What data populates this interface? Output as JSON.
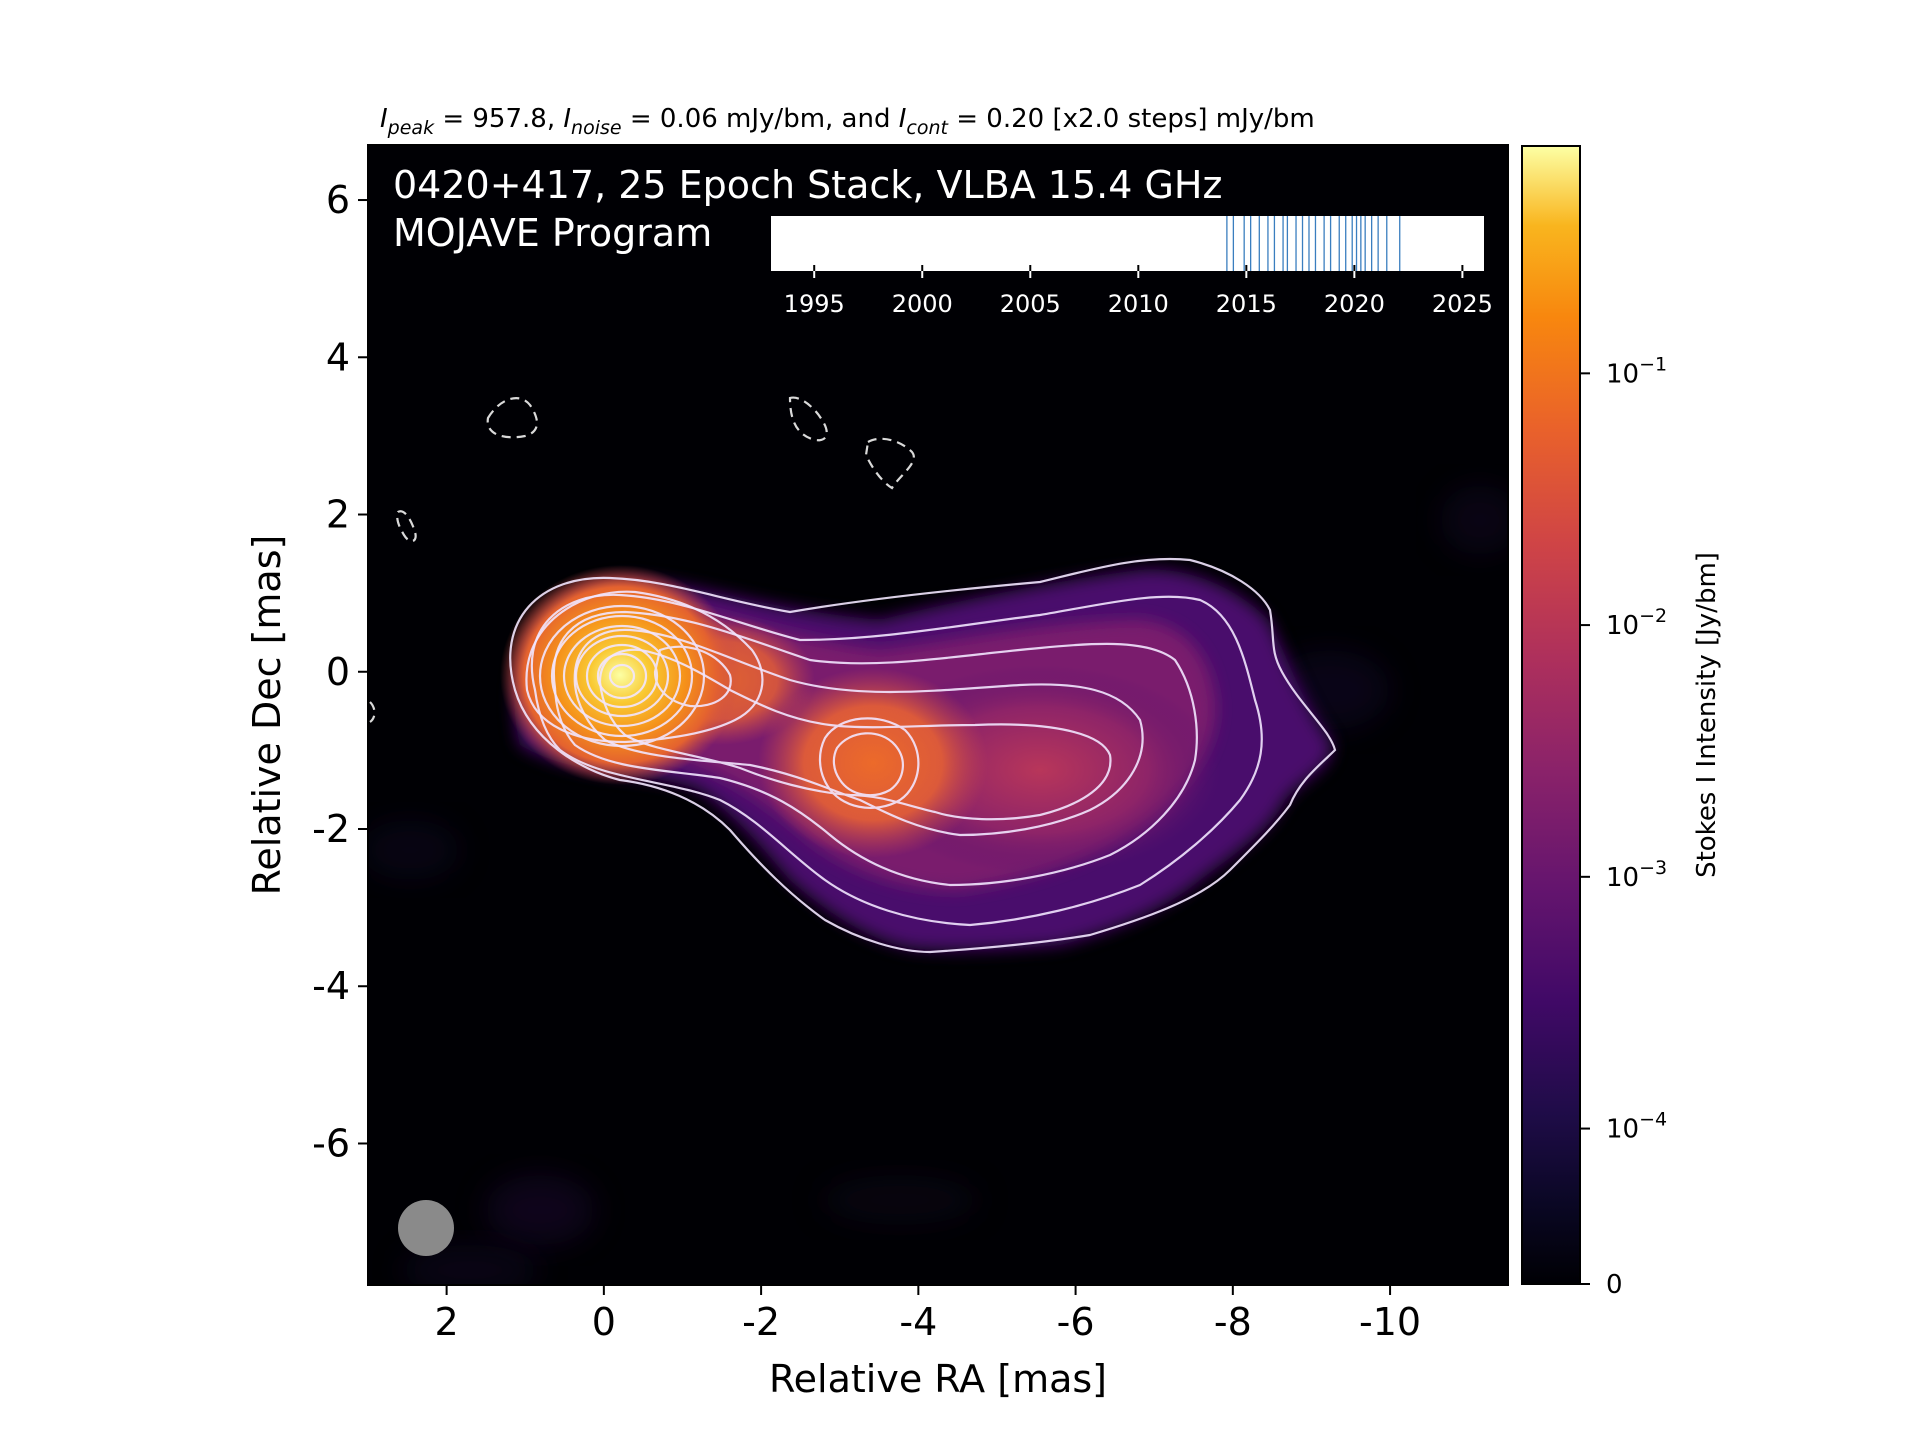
{
  "header": {
    "peak_sym": "I",
    "peak_sub": "peak",
    "peak_val": " = 957.8, ",
    "noise_sym": "I",
    "noise_sub": "noise",
    "noise_val": " = 0.06 mJy/bm, and ",
    "cont_sym": "I",
    "cont_sub": "cont",
    "cont_val": " = 0.20 [x2.0 steps] mJy/bm"
  },
  "overlay": {
    "title_line1": "0420+417, 25 Epoch Stack, VLBA 15.4 GHz",
    "title_line2": "MOJAVE Program"
  },
  "chart_data": {
    "type": "heatmap",
    "xlabel": "Relative RA [mas]",
    "ylabel": "Relative Dec [mas]",
    "xlim": [
      3.0,
      -11.5
    ],
    "ylim": [
      -7.8,
      6.7
    ],
    "x_ticks": [
      2,
      0,
      -2,
      -4,
      -6,
      -8,
      -10
    ],
    "y_ticks": [
      6,
      4,
      2,
      0,
      -2,
      -4,
      -6
    ],
    "x_tick_labels": [
      "2",
      "0",
      "-2",
      "-4",
      "-6",
      "-8",
      "-10"
    ],
    "y_tick_labels": [
      "6",
      "4",
      "2",
      "0",
      "-2",
      "-4",
      "-6"
    ],
    "colormap": "inferno",
    "colorbar": {
      "label": "Stokes I Intensity [Jy/bm]",
      "scale": "log",
      "range": [
        0,
        0.8
      ],
      "ticks": [
        {
          "value": 0.1,
          "base": "10",
          "exp": "−1"
        },
        {
          "value": 0.01,
          "base": "10",
          "exp": "−2"
        },
        {
          "value": 0.001,
          "base": "10",
          "exp": "−3"
        },
        {
          "value": 0.0001,
          "base": "10",
          "exp": "−4"
        },
        {
          "value": 0,
          "text": "0"
        }
      ]
    },
    "components": [
      {
        "ra": 0.1,
        "dec": 0.0,
        "peak": 0.9578
      },
      {
        "ra": -1.0,
        "dec": -0.05,
        "peak": 0.12
      },
      {
        "ra": -3.3,
        "dec": -1.05,
        "peak": 0.028
      },
      {
        "ra": -5.6,
        "dec": -1.2,
        "peak": 0.006
      }
    ],
    "negative_contours": [
      {
        "ra": 1.3,
        "dec": 3.3
      },
      {
        "ra": -2.5,
        "dec": 3.3
      },
      {
        "ra": -3.5,
        "dec": 2.8
      },
      {
        "ra": 2.6,
        "dec": 1.95
      }
    ],
    "beam": {
      "ra": 2.35,
      "dec": -7.0
    },
    "epoch_timeline": {
      "xlim": [
        1993,
        2026
      ],
      "ticks": [
        "1995",
        "2000",
        "2005",
        "2010",
        "2015",
        "2020",
        "2025"
      ],
      "epochs": [
        2014.1,
        2014.4,
        2014.9,
        2015.2,
        2015.6,
        2016.0,
        2016.3,
        2016.7,
        2016.9,
        2017.3,
        2017.6,
        2017.9,
        2018.2,
        2018.6,
        2018.9,
        2019.3,
        2019.6,
        2019.9,
        2020.1,
        2020.3,
        2020.5,
        2020.8,
        2021.1,
        2021.5,
        2022.1
      ]
    },
    "colors": {
      "contour": "#f2e6ff",
      "neg_contour": "#d9d9d9",
      "beam": "#8a8a8a",
      "epoch_line": "#3a7ebf"
    }
  }
}
